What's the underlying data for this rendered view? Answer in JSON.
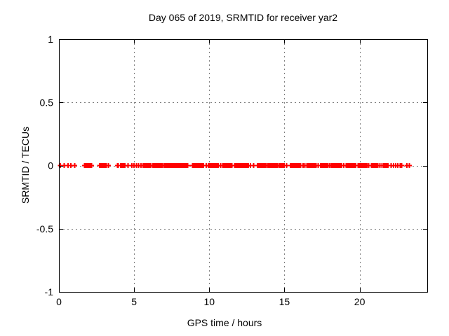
{
  "chart_data": {
    "type": "scatter",
    "title": "Day 065 of 2019, SRMTID for receiver yar2",
    "xlabel": "GPS time / hours",
    "ylabel": "SRMTID / TECUs",
    "xlim": [
      0,
      24.5
    ],
    "ylim": [
      -1,
      1
    ],
    "xticks": [
      0,
      5,
      10,
      15,
      20
    ],
    "xtick_labels": [
      "0",
      "5",
      "10",
      "15",
      "20"
    ],
    "yticks": [
      -1,
      -0.5,
      0,
      0.5,
      1
    ],
    "ytick_labels": [
      "-1",
      "-0.5",
      "0",
      "0.5",
      "1"
    ],
    "grid": true,
    "legend_position": "none",
    "marker": {
      "shape": "plus",
      "size": 7,
      "stroke_width": 2
    },
    "series": [
      {
        "name": "SRMTID",
        "y_value": 0,
        "dense_segments_hours": [
          [
            1.7,
            2.2
          ],
          [
            2.7,
            3.15
          ],
          [
            4.1,
            4.4
          ],
          [
            5.6,
            6.15
          ],
          [
            6.25,
            6.9
          ],
          [
            7.1,
            7.75
          ],
          [
            7.85,
            8.6
          ],
          [
            8.9,
            9.65
          ],
          [
            10.0,
            10.6
          ],
          [
            10.9,
            11.5
          ],
          [
            11.7,
            12.5
          ],
          [
            13.2,
            13.8
          ],
          [
            14.1,
            14.55
          ],
          [
            14.65,
            15.0
          ],
          [
            15.4,
            16.1
          ],
          [
            16.5,
            17.1
          ],
          [
            17.4,
            17.9
          ],
          [
            18.2,
            18.8
          ],
          [
            19.2,
            19.65
          ],
          [
            20.0,
            20.5
          ],
          [
            20.8,
            21.2
          ],
          [
            21.6,
            21.9
          ]
        ],
        "sparse_points_hours": [
          0.1,
          0.35,
          0.6,
          0.8,
          1.05,
          3.3,
          3.9,
          3.95,
          4.6,
          4.85,
          5.0,
          5.15,
          5.3,
          5.45,
          7.0,
          9.8,
          9.95,
          10.75,
          12.6,
          12.75,
          12.95,
          13.9,
          14.0,
          15.15,
          16.25,
          16.35,
          17.25,
          18.0,
          18.1,
          18.95,
          19.1,
          19.75,
          19.9,
          20.6,
          21.35,
          21.5,
          22.1,
          22.25,
          22.4,
          22.55,
          22.7,
          22.8,
          23.15,
          23.3
        ]
      }
    ]
  },
  "colors": {
    "marker": "#ff0000",
    "grid": "#808080",
    "axis": "#000000",
    "background": "#ffffff",
    "text": "#000000"
  }
}
